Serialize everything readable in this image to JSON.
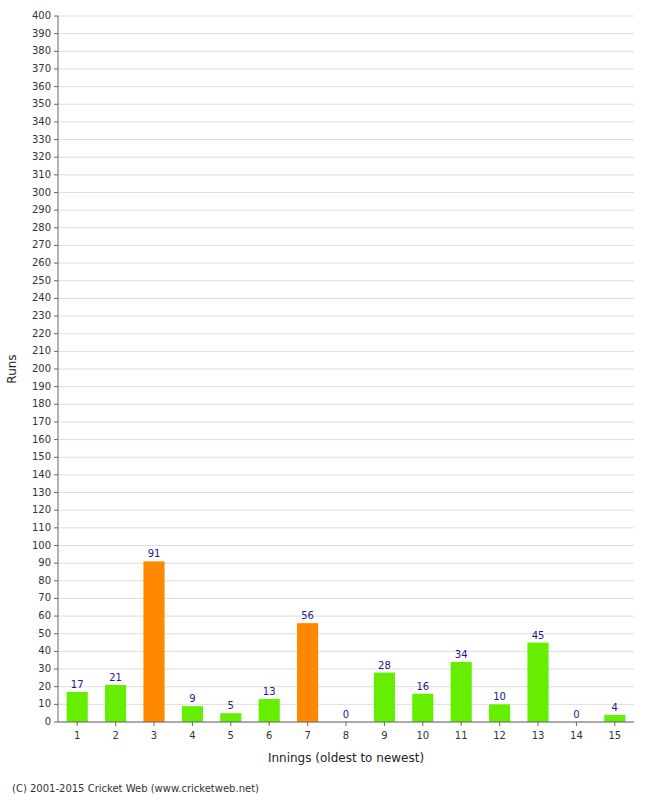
{
  "chart_data": {
    "type": "bar",
    "xlabel": "Innings (oldest to newest)",
    "ylabel": "Runs",
    "categories": [
      1,
      2,
      3,
      4,
      5,
      6,
      7,
      8,
      9,
      10,
      11,
      12,
      13,
      14,
      15
    ],
    "values": [
      17,
      21,
      91,
      9,
      5,
      13,
      56,
      0,
      28,
      16,
      34,
      10,
      45,
      0,
      4
    ],
    "colors": [
      "#66ee00",
      "#66ee00",
      "#ff8800",
      "#66ee00",
      "#66ee00",
      "#66ee00",
      "#ff8800",
      "#66ee00",
      "#66ee00",
      "#66ee00",
      "#66ee00",
      "#66ee00",
      "#66ee00",
      "#66ee00",
      "#66ee00"
    ],
    "ylim": [
      0,
      400
    ],
    "yticks": [
      0,
      10,
      20,
      30,
      40,
      50,
      60,
      70,
      80,
      90,
      100,
      110,
      120,
      130,
      140,
      150,
      160,
      170,
      180,
      190,
      200,
      210,
      220,
      230,
      240,
      250,
      260,
      270,
      280,
      290,
      300,
      310,
      320,
      330,
      340,
      350,
      360,
      370,
      380,
      390,
      400
    ],
    "grid": true,
    "data_labels": true,
    "annotations": [
      "(C) 2001-2015 Cricket Web (www.cricketweb.net)"
    ]
  }
}
